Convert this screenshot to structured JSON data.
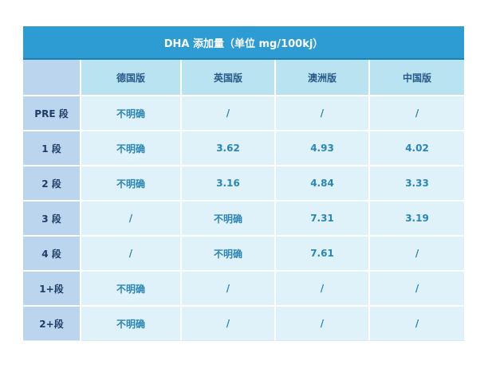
{
  "table": {
    "title": "DHA 添加量（单位 mg/100kj）",
    "corner": "",
    "columns": [
      "德国版",
      "英国版",
      "澳洲版",
      "中国版"
    ],
    "rows": [
      {
        "label": "PRE 段",
        "values": [
          "不明确",
          "/",
          "/",
          "/"
        ]
      },
      {
        "label": "1 段",
        "values": [
          "不明确",
          "3.62",
          "4.93",
          "4.02"
        ]
      },
      {
        "label": "2 段",
        "values": [
          "不明确",
          "3.16",
          "4.84",
          "3.33"
        ]
      },
      {
        "label": "3 段",
        "values": [
          "/",
          "不明确",
          "7.31",
          "3.19"
        ]
      },
      {
        "label": "4 段",
        "values": [
          "/",
          "不明确",
          "7.61",
          "/"
        ]
      },
      {
        "label": "1+段",
        "values": [
          "不明确",
          "/",
          "/",
          "/"
        ]
      },
      {
        "label": "2+段",
        "values": [
          "不明确",
          "/",
          "/",
          "/"
        ]
      }
    ]
  },
  "colors": {
    "title_bg": "#2c9cd2",
    "header_bg": "#b9e3f1",
    "row_label_bg": "#bcd5ee",
    "cell_bg": "#dff1f9",
    "value_text": "#2a86b8"
  }
}
